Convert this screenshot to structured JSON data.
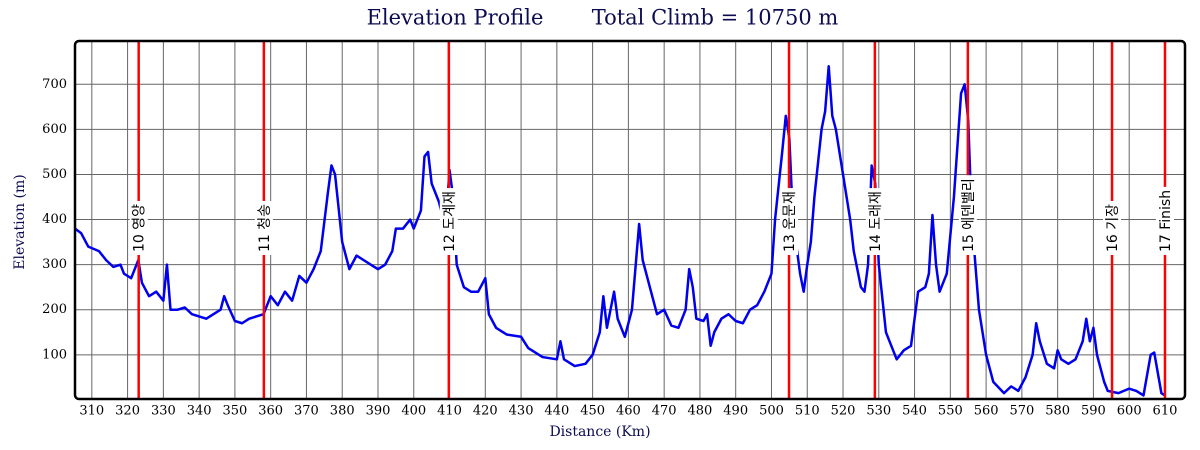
{
  "chart_data": {
    "type": "line",
    "title": "Elevation Profile",
    "subtitle": "Total Climb = 10750 m",
    "xlabel": "Distance (Km)",
    "ylabel": "Elevation (m)",
    "color": "#0000ee",
    "grid": true,
    "xlim": [
      305.3,
      615.6
    ],
    "ylim": [
      2,
      796
    ],
    "xticks": [
      310,
      320,
      330,
      340,
      350,
      360,
      370,
      380,
      390,
      400,
      410,
      420,
      430,
      440,
      450,
      460,
      470,
      480,
      490,
      500,
      510,
      520,
      530,
      540,
      550,
      560,
      570,
      580,
      590,
      600,
      610
    ],
    "yticks": [
      100,
      200,
      300,
      400,
      500,
      600,
      700
    ],
    "x": [
      305.3,
      307,
      309,
      312,
      314,
      316,
      318,
      319,
      321,
      323,
      324,
      326,
      328,
      330,
      331,
      332,
      334,
      336,
      338,
      340,
      342,
      344,
      346,
      347,
      348,
      350,
      352,
      354,
      356,
      358,
      360,
      362,
      364,
      366,
      368,
      370,
      372,
      374,
      376,
      377,
      378,
      380,
      382,
      384,
      386,
      388,
      390,
      392,
      394,
      395,
      397,
      399,
      400,
      402,
      403,
      404,
      405,
      407,
      408,
      409,
      410,
      411,
      412,
      414,
      416,
      418,
      420,
      421,
      423,
      426,
      430,
      432,
      436,
      440,
      441,
      442,
      445,
      448,
      450,
      452,
      453,
      454,
      456,
      457,
      459,
      461,
      463,
      464,
      466,
      468,
      470,
      472,
      474,
      476,
      477,
      478,
      479,
      481,
      482,
      483,
      484,
      486,
      488,
      490,
      492,
      494,
      496,
      498,
      500,
      501,
      503,
      504,
      505,
      506,
      508,
      509,
      510,
      511,
      512,
      514,
      515,
      516,
      517,
      518,
      520,
      522,
      523,
      525,
      526,
      527,
      528,
      529,
      530,
      532,
      534,
      535,
      537,
      539,
      541,
      543,
      544,
      545,
      546,
      547,
      549,
      551,
      553,
      554,
      555,
      556,
      558,
      560,
      562,
      565,
      567,
      569,
      571,
      573,
      574,
      575,
      577,
      579,
      580,
      581,
      583,
      585,
      587,
      588,
      589,
      590,
      591,
      593,
      594,
      597,
      600,
      602,
      604,
      606,
      607,
      608,
      609,
      610
    ],
    "values": [
      380,
      370,
      340,
      330,
      310,
      295,
      300,
      280,
      270,
      310,
      260,
      230,
      240,
      220,
      300,
      200,
      200,
      205,
      190,
      185,
      180,
      190,
      200,
      230,
      210,
      175,
      170,
      180,
      185,
      190,
      230,
      210,
      240,
      220,
      275,
      260,
      290,
      330,
      460,
      520,
      500,
      350,
      290,
      320,
      310,
      300,
      290,
      300,
      330,
      380,
      380,
      400,
      380,
      420,
      540,
      550,
      480,
      440,
      410,
      400,
      510,
      450,
      300,
      250,
      240,
      240,
      270,
      190,
      160,
      145,
      140,
      115,
      95,
      90,
      130,
      90,
      75,
      80,
      100,
      150,
      230,
      160,
      240,
      180,
      140,
      200,
      390,
      310,
      250,
      190,
      200,
      165,
      160,
      200,
      290,
      250,
      180,
      175,
      190,
      120,
      150,
      180,
      190,
      175,
      170,
      200,
      210,
      240,
      280,
      400,
      550,
      630,
      580,
      400,
      280,
      240,
      300,
      350,
      450,
      600,
      640,
      740,
      630,
      600,
      500,
      400,
      330,
      250,
      240,
      300,
      520,
      480,
      300,
      150,
      110,
      90,
      110,
      120,
      240,
      250,
      280,
      410,
      300,
      240,
      280,
      450,
      680,
      700,
      620,
      400,
      200,
      100,
      40,
      15,
      30,
      20,
      50,
      100,
      170,
      130,
      80,
      70,
      110,
      90,
      80,
      90,
      130,
      180,
      130,
      160,
      100,
      40,
      20,
      15,
      25,
      20,
      10,
      100,
      105,
      60,
      15,
      10
    ],
    "checkpoint_color": "#ff0000",
    "checkpoints": [
      {
        "x": 323.1,
        "label": "10 영양"
      },
      {
        "x": 358.1,
        "label": "11 청송"
      },
      {
        "x": 409.8,
        "label": "12 도계재"
      },
      {
        "x": 504.9,
        "label": "13 운문재"
      },
      {
        "x": 528.9,
        "label": "14 도래재"
      },
      {
        "x": 554.9,
        "label": "15 에덴밸리"
      },
      {
        "x": 595.2,
        "label": "16 기장"
      },
      {
        "x": 610,
        "label": "17 Finish"
      }
    ]
  }
}
